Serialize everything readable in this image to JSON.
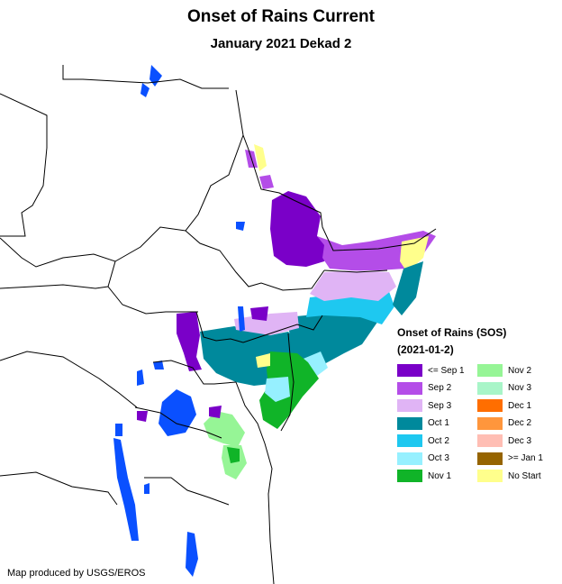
{
  "map": {
    "title": "Onset of Rains Current",
    "subtitle": "January 2021 Dekad 2",
    "credit": "Map produced by USGS/EROS"
  },
  "legend": {
    "title": "Onset of Rains (SOS)",
    "period": "(2021-01-2)",
    "items": [
      {
        "label": "<= Sep 1",
        "color": "#7a00c8"
      },
      {
        "label": "Sep 2",
        "color": "#b44de8"
      },
      {
        "label": "Sep 3",
        "color": "#e0b4f5"
      },
      {
        "label": "Oct 1",
        "color": "#00899c"
      },
      {
        "label": "Oct 2",
        "color": "#1ec8f0"
      },
      {
        "label": "Oct 3",
        "color": "#96f0ff"
      },
      {
        "label": "Nov 1",
        "color": "#10b428"
      },
      {
        "label": "Nov 2",
        "color": "#96f596"
      },
      {
        "label": "Nov 3",
        "color": "#a8f5c8"
      },
      {
        "label": "Dec 1",
        "color": "#ff6e00"
      },
      {
        "label": "Dec 2",
        "color": "#ff963c"
      },
      {
        "label": "Dec 3",
        "color": "#ffbeb4"
      },
      {
        "label": ">= Jan 1",
        "color": "#966400"
      },
      {
        "label": "No Start",
        "color": "#ffff8c"
      }
    ]
  },
  "colors": {
    "water": "#0a50ff",
    "border": "#000000"
  }
}
